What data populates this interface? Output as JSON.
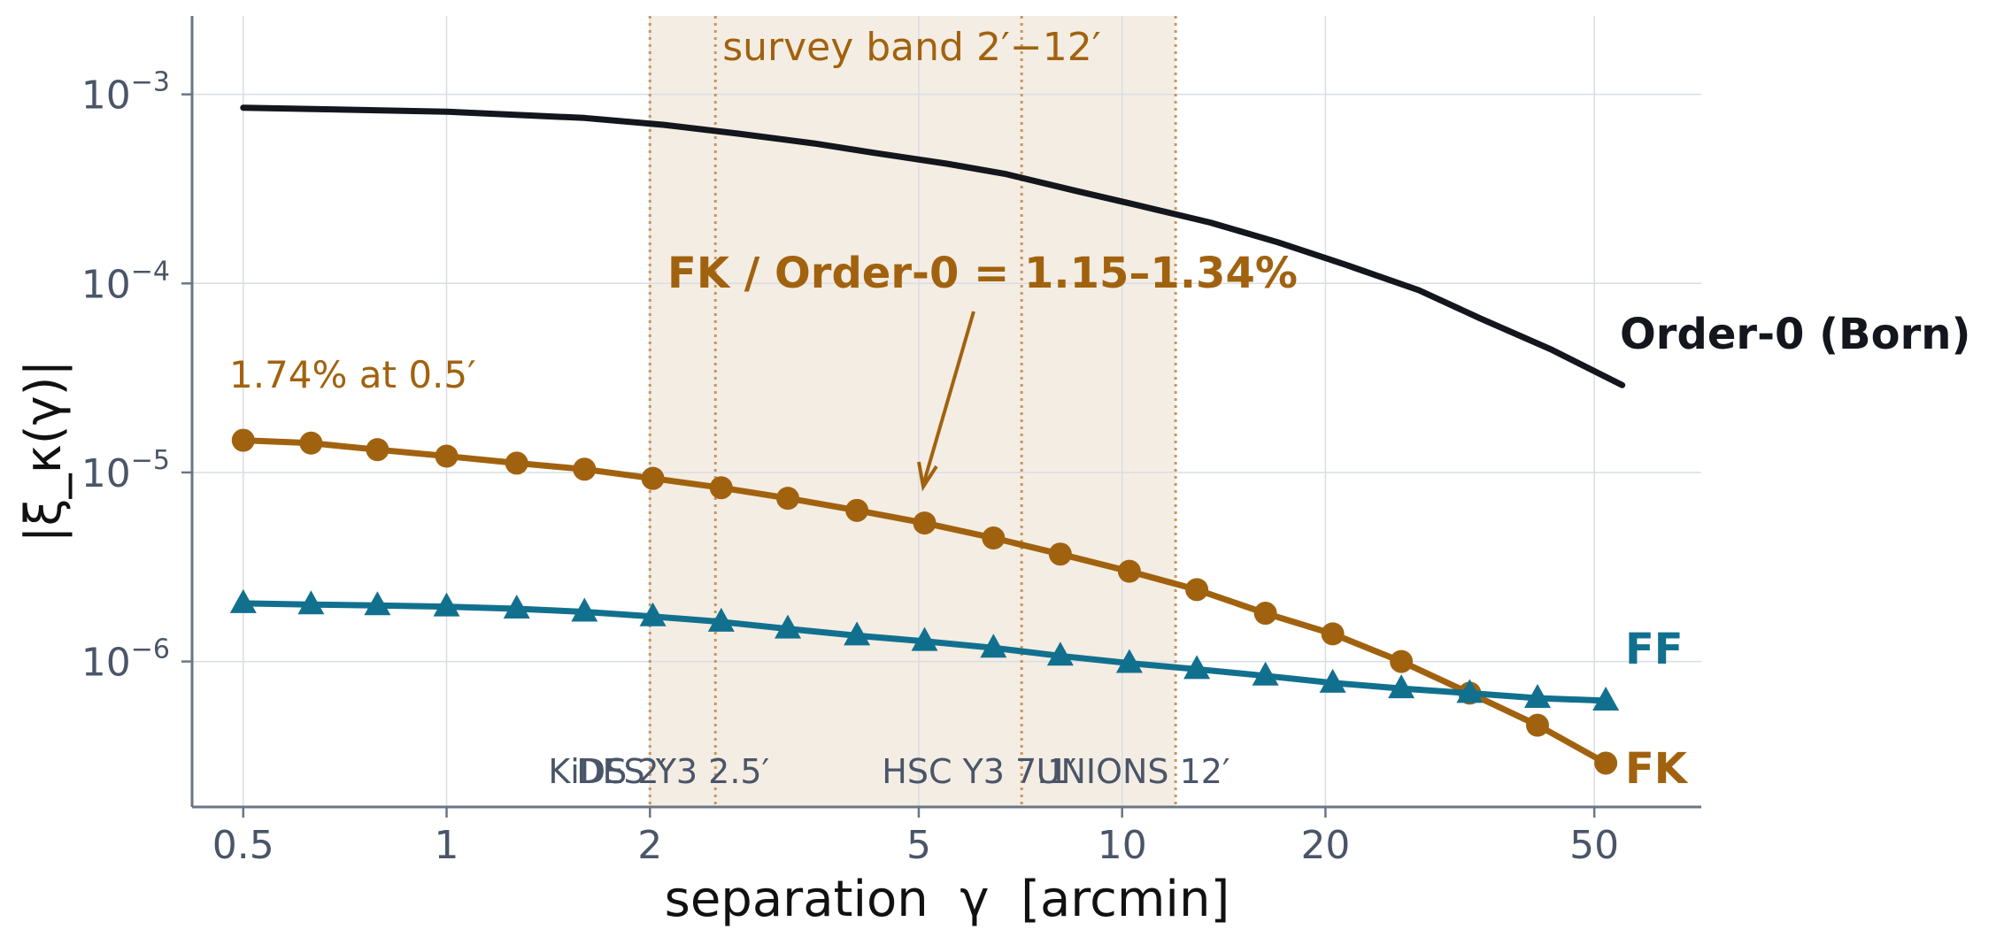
{
  "chart_data": {
    "type": "line",
    "xlabel": "separation  γ  [arcmin]",
    "ylabel": "|ξ_κ(γ)|",
    "xscale": "log",
    "yscale": "log",
    "xlim": [
      0.42,
      72
    ],
    "ylim": [
      1.7e-07,
      0.0026
    ],
    "xticks": [
      {
        "value": 0.5,
        "label": "0.5"
      },
      {
        "value": 1,
        "label": "1"
      },
      {
        "value": 2,
        "label": "2"
      },
      {
        "value": 5,
        "label": "5"
      },
      {
        "value": 10,
        "label": "10"
      },
      {
        "value": 20,
        "label": "20"
      },
      {
        "value": 50,
        "label": "50"
      }
    ],
    "yticks": [
      {
        "value": 0.001,
        "exp": "−3"
      },
      {
        "value": 0.0001,
        "exp": "−4"
      },
      {
        "value": 1e-05,
        "exp": "−5"
      },
      {
        "value": 1e-06,
        "exp": "−6"
      }
    ],
    "grid": true,
    "series": [
      {
        "name": "Order-0 (Born)",
        "color": "#13161c",
        "marker": "none",
        "x": [
          0.5,
          1,
          1.6,
          2.1,
          2.7,
          3.5,
          4.3,
          5.5,
          6.7,
          8.5,
          10.5,
          13.5,
          17,
          21.5,
          27.5,
          34,
          43,
          55
        ],
        "y": [
          0.00085,
          0.00081,
          0.00075,
          0.00069,
          0.00062,
          0.00055,
          0.00049,
          0.00043,
          0.00038,
          0.00031,
          0.00026,
          0.00021,
          0.000165,
          0.000125,
          9.2e-05,
          6.5e-05,
          4.5e-05,
          2.9e-05
        ]
      },
      {
        "name": "FK",
        "color": "#a1620f",
        "marker": "circle",
        "x": [
          0.5,
          0.63,
          0.79,
          1.0,
          1.27,
          1.6,
          2.02,
          2.55,
          3.2,
          4.05,
          5.1,
          6.45,
          8.1,
          10.25,
          12.9,
          16.3,
          20.5,
          25.9,
          32.7,
          41.2,
          52
        ],
        "y": [
          1.48e-05,
          1.43e-05,
          1.32e-05,
          1.22e-05,
          1.12e-05,
          1.04e-05,
          9.3e-06,
          8.3e-06,
          7.3e-06,
          6.3e-06,
          5.4e-06,
          4.5e-06,
          3.7e-06,
          3e-06,
          2.4e-06,
          1.8e-06,
          1.4e-06,
          1e-06,
          6.8e-07,
          4.6e-07,
          2.9e-07
        ]
      },
      {
        "name": "FF",
        "color": "#12708f",
        "marker": "triangle",
        "x": [
          0.5,
          0.63,
          0.79,
          1.0,
          1.27,
          1.6,
          2.02,
          2.55,
          3.2,
          4.05,
          5.1,
          6.45,
          8.1,
          10.25,
          12.9,
          16.3,
          20.5,
          25.9,
          32.7,
          41.2,
          52
        ],
        "y": [
          2.03e-06,
          2e-06,
          1.98e-06,
          1.95e-06,
          1.9e-06,
          1.83e-06,
          1.73e-06,
          1.62e-06,
          1.49e-06,
          1.37e-06,
          1.28e-06,
          1.18e-06,
          1.07e-06,
          9.8e-07,
          9.1e-07,
          8.4e-07,
          7.7e-07,
          7.2e-07,
          6.8e-07,
          6.4e-07,
          6.2e-07
        ]
      }
    ],
    "band": {
      "x_from": 2,
      "x_to": 12,
      "label": "survey band  2′−12′",
      "color": "#f4ede3"
    },
    "vlines": [
      {
        "x": 2,
        "label": "KiDS 2′"
      },
      {
        "x": 2.5,
        "label": "DES Y3 2.5′"
      },
      {
        "x": 7.1,
        "label": "HSC Y3 7.1′"
      },
      {
        "x": 12,
        "label": "UNIONS 12′"
      }
    ],
    "annotations": {
      "ratio": "FK / Order-0 = 1.15–1.34%",
      "note": "1.74% at 0.5′"
    }
  }
}
